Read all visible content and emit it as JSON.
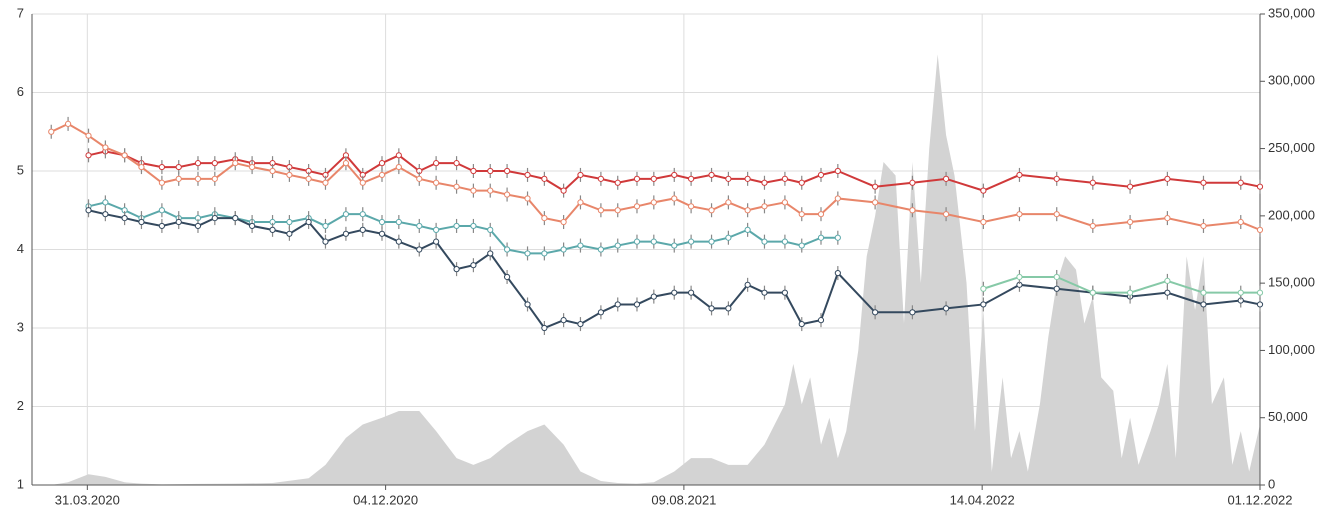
{
  "chart_data": {
    "type": "line",
    "xlim": [
      "2020-02-14",
      "2022-12-01"
    ],
    "xticks": [
      {
        "value": "2020-03-31",
        "label": "31.03.2020"
      },
      {
        "value": "2020-12-04",
        "label": "04.12.2020"
      },
      {
        "value": "2021-08-09",
        "label": "09.08.2021"
      },
      {
        "value": "2022-04-14",
        "label": "14.04.2022"
      },
      {
        "value": "2022-12-01",
        "label": "01.12.2022"
      }
    ],
    "ylim": [
      1,
      7
    ],
    "yticks": [
      1,
      2,
      3,
      4,
      5,
      6,
      7
    ],
    "y2lim": [
      0,
      350000
    ],
    "y2ticks": [
      {
        "value": 0,
        "label": "0"
      },
      {
        "value": 50000,
        "label": "50,000"
      },
      {
        "value": 100000,
        "label": "100,000"
      },
      {
        "value": 150000,
        "label": "150,000"
      },
      {
        "value": 200000,
        "label": "200,000"
      },
      {
        "value": 250000,
        "label": "250,000"
      },
      {
        "value": 300000,
        "label": "300,000"
      },
      {
        "value": 350000,
        "label": "350,000"
      }
    ],
    "grid": true,
    "x": [
      "2020-03-01",
      "2020-03-15",
      "2020-04-01",
      "2020-04-15",
      "2020-05-01",
      "2020-05-15",
      "2020-06-01",
      "2020-06-15",
      "2020-07-01",
      "2020-07-15",
      "2020-08-01",
      "2020-08-15",
      "2020-09-01",
      "2020-09-15",
      "2020-10-01",
      "2020-10-15",
      "2020-11-01",
      "2020-11-15",
      "2020-12-01",
      "2020-12-15",
      "2021-01-01",
      "2021-01-15",
      "2021-02-01",
      "2021-02-15",
      "2021-03-01",
      "2021-03-15",
      "2021-04-01",
      "2021-04-15",
      "2021-05-01",
      "2021-05-15",
      "2021-06-01",
      "2021-06-15",
      "2021-07-01",
      "2021-07-15",
      "2021-08-01",
      "2021-08-15",
      "2021-09-01",
      "2021-09-15",
      "2021-10-01",
      "2021-10-15",
      "2021-11-01",
      "2021-11-15",
      "2021-12-01",
      "2021-12-15",
      "2022-01-15",
      "2022-02-15",
      "2022-03-15",
      "2022-04-15",
      "2022-05-15",
      "2022-06-15",
      "2022-07-15",
      "2022-08-15",
      "2022-09-15",
      "2022-10-15",
      "2022-11-15",
      "2022-12-01"
    ],
    "series": [
      {
        "color": "#d0393a",
        "values": [
          null,
          null,
          5.2,
          5.25,
          5.2,
          5.1,
          5.05,
          5.05,
          5.1,
          5.1,
          5.15,
          5.1,
          5.1,
          5.05,
          5.0,
          4.95,
          5.2,
          4.95,
          5.1,
          5.2,
          5.0,
          5.1,
          5.1,
          5.0,
          5.0,
          5.0,
          4.95,
          4.9,
          4.75,
          4.95,
          4.9,
          4.85,
          4.9,
          4.9,
          4.95,
          4.9,
          4.95,
          4.9,
          4.9,
          4.85,
          4.9,
          4.85,
          4.95,
          5.0,
          4.8,
          4.85,
          4.9,
          4.75,
          4.95,
          4.9,
          4.85,
          4.8,
          4.9,
          4.85,
          4.85,
          4.8
        ]
      },
      {
        "color": "#e8866a",
        "values": [
          5.5,
          5.6,
          5.45,
          5.3,
          5.2,
          5.05,
          4.85,
          4.9,
          4.9,
          4.9,
          5.1,
          5.05,
          5.0,
          4.95,
          4.9,
          4.85,
          5.1,
          4.85,
          4.95,
          5.05,
          4.9,
          4.85,
          4.8,
          4.75,
          4.75,
          4.7,
          4.65,
          4.4,
          4.35,
          4.6,
          4.5,
          4.5,
          4.55,
          4.6,
          4.65,
          4.55,
          4.5,
          4.6,
          4.5,
          4.55,
          4.6,
          4.45,
          4.45,
          4.65,
          4.6,
          4.5,
          4.45,
          4.35,
          4.45,
          4.45,
          4.3,
          4.35,
          4.4,
          4.3,
          4.35,
          4.25
        ]
      },
      {
        "color": "#5ba8aa",
        "values": [
          null,
          null,
          4.55,
          4.6,
          4.5,
          4.4,
          4.5,
          4.4,
          4.4,
          4.45,
          4.4,
          4.35,
          4.35,
          4.35,
          4.4,
          4.3,
          4.45,
          4.45,
          4.35,
          4.35,
          4.3,
          4.25,
          4.3,
          4.3,
          4.25,
          4.0,
          3.95,
          3.95,
          4.0,
          4.05,
          4.0,
          4.05,
          4.1,
          4.1,
          4.05,
          4.1,
          4.1,
          4.15,
          4.25,
          4.1,
          4.1,
          4.05,
          4.15,
          4.15,
          null,
          null,
          null,
          null,
          null,
          null,
          null,
          null,
          null,
          null,
          null,
          null
        ]
      },
      {
        "color": "#34495e",
        "values": [
          null,
          null,
          4.5,
          4.45,
          4.4,
          4.35,
          4.3,
          4.35,
          4.3,
          4.4,
          4.4,
          4.3,
          4.25,
          4.2,
          4.35,
          4.1,
          4.2,
          4.25,
          4.2,
          4.1,
          4.0,
          4.1,
          3.75,
          3.8,
          3.95,
          3.65,
          3.3,
          3.0,
          3.1,
          3.05,
          3.2,
          3.3,
          3.3,
          3.4,
          3.45,
          3.45,
          3.25,
          3.25,
          3.55,
          3.45,
          3.45,
          3.05,
          3.1,
          3.7,
          3.2,
          3.2,
          3.25,
          3.3,
          3.55,
          3.5,
          3.45,
          3.4,
          3.45,
          3.3,
          3.35,
          3.3
        ]
      },
      {
        "color": "#86c9a7",
        "values": [
          null,
          null,
          null,
          null,
          null,
          null,
          null,
          null,
          null,
          null,
          null,
          null,
          null,
          null,
          null,
          null,
          null,
          null,
          null,
          null,
          null,
          null,
          null,
          null,
          null,
          null,
          null,
          null,
          null,
          null,
          null,
          null,
          null,
          null,
          null,
          null,
          null,
          null,
          null,
          null,
          null,
          null,
          null,
          null,
          null,
          null,
          null,
          3.5,
          3.65,
          3.65,
          3.45,
          3.45,
          3.6,
          3.45,
          3.45,
          3.45
        ]
      }
    ],
    "area": {
      "axis": "y2",
      "color": "#d3d3d3",
      "x": [
        "2020-02-15",
        "2020-03-01",
        "2020-03-15",
        "2020-04-01",
        "2020-04-15",
        "2020-05-01",
        "2020-05-15",
        "2020-06-01",
        "2020-07-01",
        "2020-08-01",
        "2020-09-01",
        "2020-10-01",
        "2020-10-15",
        "2020-11-01",
        "2020-11-15",
        "2020-12-01",
        "2020-12-15",
        "2021-01-01",
        "2021-01-15",
        "2021-02-01",
        "2021-02-15",
        "2021-03-01",
        "2021-03-15",
        "2021-04-01",
        "2021-04-15",
        "2021-05-01",
        "2021-05-15",
        "2021-06-01",
        "2021-06-15",
        "2021-07-01",
        "2021-07-15",
        "2021-08-01",
        "2021-08-15",
        "2021-09-01",
        "2021-09-15",
        "2021-10-01",
        "2021-10-15",
        "2021-11-01",
        "2021-11-08",
        "2021-11-15",
        "2021-11-22",
        "2021-12-01",
        "2021-12-08",
        "2021-12-15",
        "2021-12-22",
        "2022-01-01",
        "2022-01-08",
        "2022-01-15",
        "2022-01-22",
        "2022-02-01",
        "2022-02-08",
        "2022-02-15",
        "2022-02-22",
        "2022-03-01",
        "2022-03-08",
        "2022-03-15",
        "2022-03-22",
        "2022-04-01",
        "2022-04-08",
        "2022-04-15",
        "2022-04-22",
        "2022-05-01",
        "2022-05-08",
        "2022-05-15",
        "2022-05-22",
        "2022-06-01",
        "2022-06-08",
        "2022-06-15",
        "2022-06-22",
        "2022-07-01",
        "2022-07-08",
        "2022-07-15",
        "2022-07-22",
        "2022-08-01",
        "2022-08-08",
        "2022-08-15",
        "2022-08-22",
        "2022-09-01",
        "2022-09-08",
        "2022-09-15",
        "2022-09-22",
        "2022-10-01",
        "2022-10-08",
        "2022-10-15",
        "2022-10-22",
        "2022-11-01",
        "2022-11-08",
        "2022-11-15",
        "2022-11-22",
        "2022-12-01"
      ],
      "values": [
        0,
        0,
        2000,
        8000,
        6000,
        2000,
        1000,
        500,
        800,
        1000,
        1500,
        5000,
        15000,
        35000,
        45000,
        50000,
        55000,
        55000,
        40000,
        20000,
        15000,
        20000,
        30000,
        40000,
        45000,
        30000,
        10000,
        3000,
        1500,
        1000,
        2000,
        10000,
        20000,
        20000,
        15000,
        15000,
        30000,
        60000,
        90000,
        60000,
        80000,
        30000,
        50000,
        20000,
        40000,
        100000,
        170000,
        200000,
        240000,
        230000,
        120000,
        240000,
        150000,
        250000,
        320000,
        260000,
        230000,
        150000,
        40000,
        130000,
        10000,
        80000,
        20000,
        40000,
        10000,
        60000,
        110000,
        150000,
        170000,
        160000,
        120000,
        140000,
        80000,
        70000,
        20000,
        50000,
        15000,
        40000,
        60000,
        90000,
        20000,
        170000,
        130000,
        170000,
        60000,
        80000,
        15000,
        40000,
        10000,
        45000
      ]
    }
  }
}
